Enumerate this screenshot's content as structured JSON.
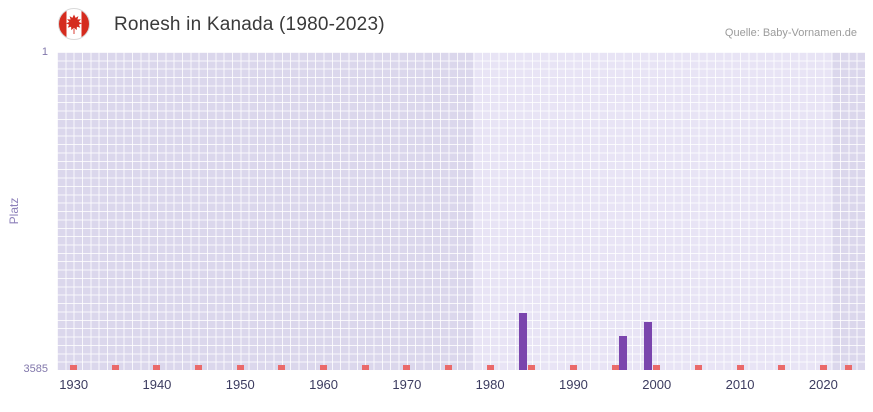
{
  "header": {
    "title": "Ronesh in Kanada (1980-2023)",
    "source": "Quelle: Baby-Vornamen.de",
    "flag_icon": "canada-flag-icon"
  },
  "chart_data": {
    "type": "bar",
    "title": "Ronesh in Kanada (1980-2023)",
    "subtitle": "",
    "xlabel": "",
    "ylabel": "Platz",
    "legend": "none",
    "grid": true,
    "y_axis": {
      "min": 1,
      "max": 3585,
      "inverted": true,
      "top_label": "1",
      "bottom_label": "3585"
    },
    "x_axis": {
      "min": 1928,
      "max": 2025,
      "tick_years": [
        1930,
        1940,
        1950,
        1960,
        1970,
        1980,
        1990,
        2000,
        2010,
        2020
      ]
    },
    "series": [
      {
        "name": "Platz",
        "color": "#7a45ad",
        "points": [
          {
            "year": 1984,
            "rank": 2940
          },
          {
            "year": 1996,
            "rank": 3200
          },
          {
            "year": 1999,
            "rank": 3040
          }
        ]
      }
    ],
    "no_rank_marker_years": [
      1930,
      1935,
      1940,
      1945,
      1950,
      1955,
      1960,
      1965,
      1970,
      1975,
      1980,
      1985,
      1990,
      1995,
      2000,
      2005,
      2010,
      2015,
      2020,
      2023
    ],
    "marker_color": "#ea6a6a",
    "highlight_range": [
      1978,
      2021
    ],
    "colors": {
      "plot_bg": "#dbd7ec",
      "highlight_bg": "#e8e4f5",
      "grid": "#ffffff",
      "bar": "#7a45ad",
      "marker": "#ea6a6a",
      "x_tick_text": "#3c3c60",
      "y_tick_text": "#8177ab",
      "flag_red": "#d52b1e"
    }
  }
}
